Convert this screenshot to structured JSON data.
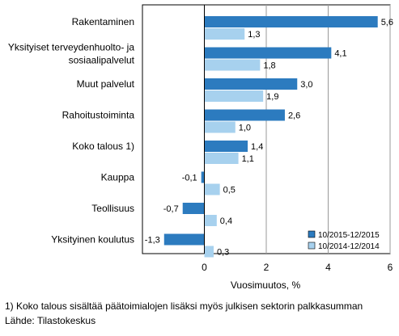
{
  "chart_data": {
    "type": "bar",
    "orientation": "horizontal",
    "categories": [
      [
        "Rakentaminen"
      ],
      [
        "Yksityiset terveydenhuolto- ja",
        "sosiaalipalvelut"
      ],
      [
        "Muut palvelut"
      ],
      [
        "Rahoitustoiminta"
      ],
      [
        "Koko talous 1)"
      ],
      [
        "Kauppa"
      ],
      [
        "Teollisuus"
      ],
      [
        "Yksityinen koulutus"
      ]
    ],
    "series": [
      {
        "name": "10/2015-12/2015",
        "color": "#2c7bbf",
        "values": [
          5.6,
          4.1,
          3.0,
          2.6,
          1.4,
          -0.1,
          -0.7,
          -1.3
        ],
        "labels": [
          "5,6",
          "4,1",
          "3,0",
          "2,6",
          "1,4",
          "-0,1",
          "-0,7",
          "-1,3"
        ]
      },
      {
        "name": "10/2014-12/2014",
        "color": "#a7d1ee",
        "values": [
          1.3,
          1.8,
          1.9,
          1.0,
          1.1,
          0.5,
          0.4,
          0.3
        ],
        "labels": [
          "1,3",
          "1,8",
          "1,9",
          "1,0",
          "1,1",
          "0,5",
          "0,4",
          "0,3"
        ]
      }
    ],
    "xlabel": "Vuosimuutos, %",
    "xlim": [
      -2,
      6
    ],
    "xticks": [
      0,
      2,
      4,
      6
    ],
    "xtick_labels": [
      "0",
      "2",
      "4",
      "6"
    ],
    "grid": true,
    "legend_position": "bottom-right"
  },
  "notes": {
    "footnote": "1) Koko talous sisältää päätoimialojen lisäksi myös julkisen sektorin palkkasumman",
    "source": "Lähde: Tilastokeskus"
  }
}
